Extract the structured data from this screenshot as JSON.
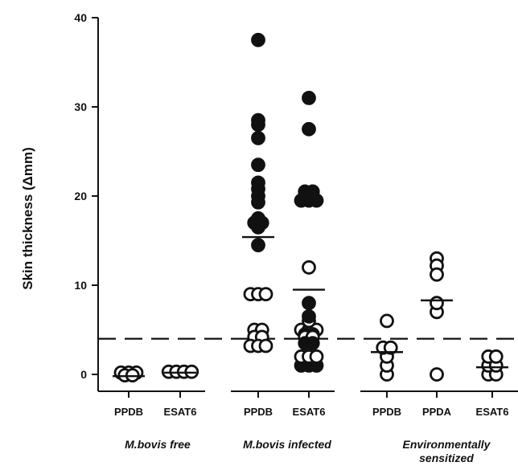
{
  "chart_data": {
    "type": "scatter",
    "ylabel": "Skin thickness (Δmm)",
    "ylim": [
      0,
      40
    ],
    "yticks": [
      0,
      10,
      20,
      30,
      40
    ],
    "cutoff": 4,
    "groups": [
      {
        "label": "M.bovis free",
        "label_lines": [
          "M.bovis free"
        ],
        "categories": [
          "PPDB",
          "ESAT6"
        ]
      },
      {
        "label": "M.bovis infected",
        "label_lines": [
          "M.bovis infected"
        ],
        "categories": [
          "PPDB",
          "ESAT6"
        ]
      },
      {
        "label": "Environmentally sensitized",
        "label_lines": [
          "Environmentally",
          "sensitized"
        ],
        "categories": [
          "PPDB",
          "PPDA",
          "ESAT6"
        ]
      }
    ],
    "series": [
      {
        "group": 0,
        "category": "PPDB",
        "mean": -0.2,
        "points": [
          {
            "y": 0.2,
            "filled": false
          },
          {
            "y": 0.2,
            "filled": false
          },
          {
            "y": 0.2,
            "filled": false
          },
          {
            "y": -0.1,
            "filled": false
          },
          {
            "y": -0.1,
            "filled": false
          }
        ]
      },
      {
        "group": 0,
        "category": "ESAT6",
        "mean": 0.2,
        "points": [
          {
            "y": 0.3,
            "filled": false
          },
          {
            "y": 0.3,
            "filled": false
          },
          {
            "y": 0.3,
            "filled": false
          },
          {
            "y": 0.3,
            "filled": false
          }
        ]
      },
      {
        "group": 1,
        "category": "PPDB",
        "mean": 15.4,
        "points": [
          {
            "y": 37.5,
            "filled": true
          },
          {
            "y": 28.5,
            "filled": true
          },
          {
            "y": 28.0,
            "filled": true
          },
          {
            "y": 26.5,
            "filled": true
          },
          {
            "y": 23.5,
            "filled": true
          },
          {
            "y": 21.5,
            "filled": true
          },
          {
            "y": 20.8,
            "filled": true
          },
          {
            "y": 20.0,
            "filled": true
          },
          {
            "y": 19.3,
            "filled": true
          },
          {
            "y": 17.5,
            "filled": true
          },
          {
            "y": 17.0,
            "filled": true
          },
          {
            "y": 17.0,
            "filled": true
          },
          {
            "y": 16.5,
            "filled": true
          },
          {
            "y": 14.5,
            "filled": true
          },
          {
            "y": 9.0,
            "filled": false
          },
          {
            "y": 9.0,
            "filled": false
          },
          {
            "y": 9.0,
            "filled": false
          },
          {
            "y": 5.0,
            "filled": false
          },
          {
            "y": 5.0,
            "filled": false
          },
          {
            "y": 4.2,
            "filled": false
          },
          {
            "y": 4.2,
            "filled": false
          },
          {
            "y": 3.2,
            "filled": false
          },
          {
            "y": 3.2,
            "filled": false
          },
          {
            "y": 3.2,
            "filled": false
          }
        ]
      },
      {
        "group": 1,
        "category": "ESAT6",
        "mean": 9.5,
        "points": [
          {
            "y": 31.0,
            "filled": true
          },
          {
            "y": 27.5,
            "filled": true
          },
          {
            "y": 20.5,
            "filled": true
          },
          {
            "y": 20.5,
            "filled": true
          },
          {
            "y": 19.5,
            "filled": true
          },
          {
            "y": 19.5,
            "filled": true
          },
          {
            "y": 19.5,
            "filled": true
          },
          {
            "y": 12.0,
            "filled": false
          },
          {
            "y": 8.0,
            "filled": true
          },
          {
            "y": 6.5,
            "filled": true
          },
          {
            "y": 6.0,
            "filled": false
          },
          {
            "y": 5.0,
            "filled": false
          },
          {
            "y": 5.0,
            "filled": false
          },
          {
            "y": 5.0,
            "filled": false
          },
          {
            "y": 4.5,
            "filled": true
          },
          {
            "y": 4.5,
            "filled": true
          },
          {
            "y": 4.2,
            "filled": false
          },
          {
            "y": 4.2,
            "filled": false
          },
          {
            "y": 3.5,
            "filled": true
          },
          {
            "y": 3.5,
            "filled": true
          },
          {
            "y": 2.0,
            "filled": false
          },
          {
            "y": 2.0,
            "filled": false
          },
          {
            "y": 2.0,
            "filled": false
          },
          {
            "y": 1.0,
            "filled": true
          },
          {
            "y": 1.0,
            "filled": true
          },
          {
            "y": 1.0,
            "filled": true
          }
        ]
      },
      {
        "group": 2,
        "category": "PPDB",
        "mean": 2.5,
        "points": [
          {
            "y": 6.0,
            "filled": false
          },
          {
            "y": 3.0,
            "filled": false
          },
          {
            "y": 3.0,
            "filled": false
          },
          {
            "y": 2.0,
            "filled": false
          },
          {
            "y": 1.0,
            "filled": false
          },
          {
            "y": 0.0,
            "filled": false
          }
        ]
      },
      {
        "group": 2,
        "category": "PPDA",
        "mean": 8.3,
        "points": [
          {
            "y": 13.0,
            "filled": false
          },
          {
            "y": 12.2,
            "filled": false
          },
          {
            "y": 11.2,
            "filled": false
          },
          {
            "y": 8.0,
            "filled": false
          },
          {
            "y": 7.0,
            "filled": false
          },
          {
            "y": 0.0,
            "filled": false
          }
        ]
      },
      {
        "group": 2,
        "category": "ESAT6",
        "mean": 0.8,
        "points": [
          {
            "y": 2.0,
            "filled": false
          },
          {
            "y": 2.0,
            "filled": false
          },
          {
            "y": 1.0,
            "filled": false
          },
          {
            "y": 1.0,
            "filled": false
          },
          {
            "y": 0.0,
            "filled": false
          },
          {
            "y": 0.0,
            "filled": false
          }
        ]
      }
    ]
  }
}
